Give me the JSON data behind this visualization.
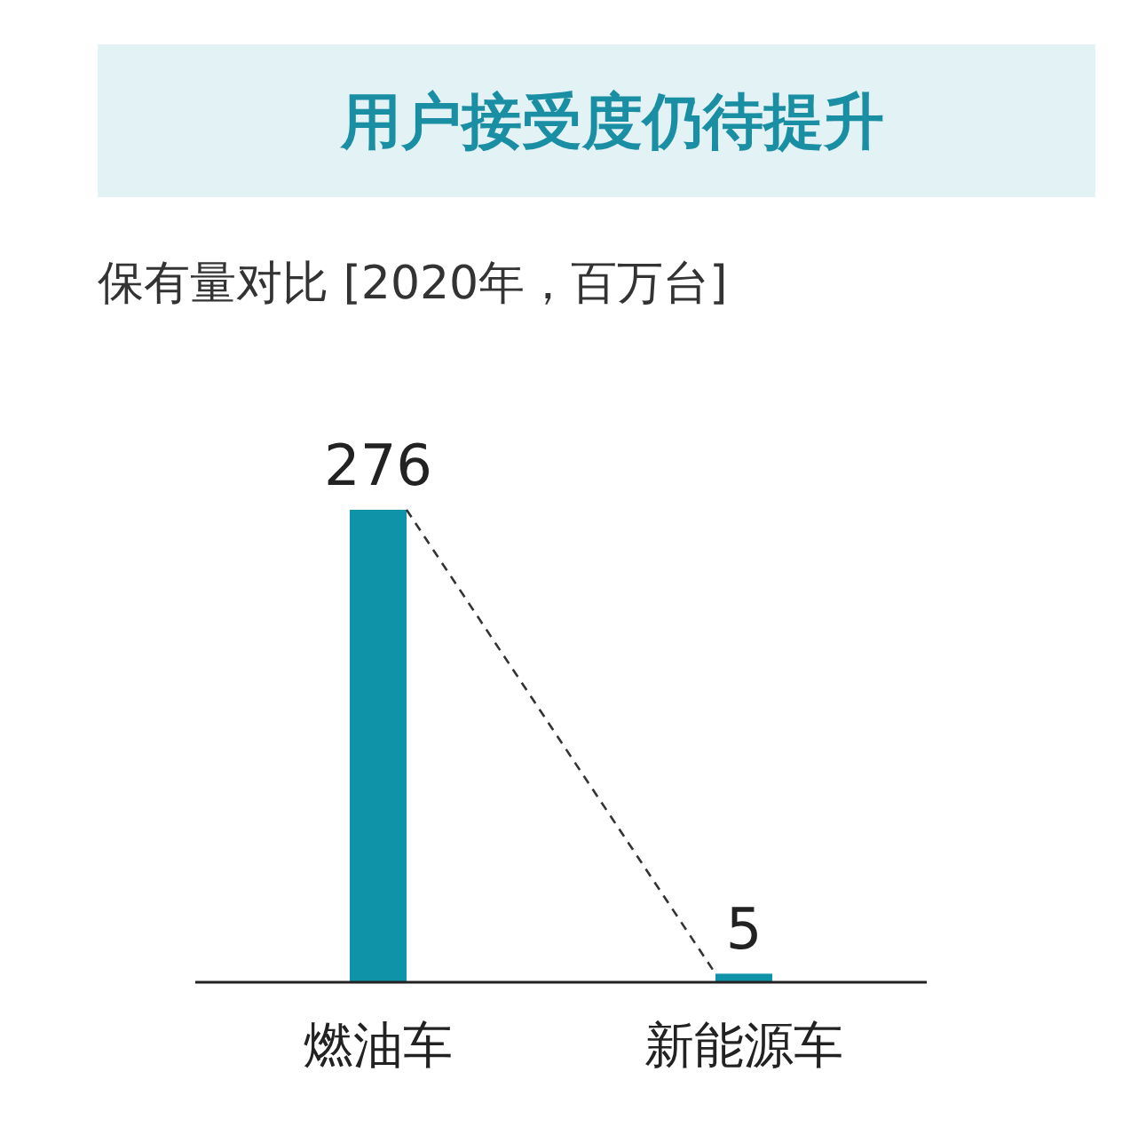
{
  "chart_data": {
    "type": "bar",
    "title": "用户接受度仍待提升",
    "subtitle": "保有量对比 [2020年，百万台]",
    "categories": [
      "燃油车",
      "新能源车"
    ],
    "values": [
      276,
      5
    ],
    "color": "#0e93a8",
    "data_labels": true
  }
}
